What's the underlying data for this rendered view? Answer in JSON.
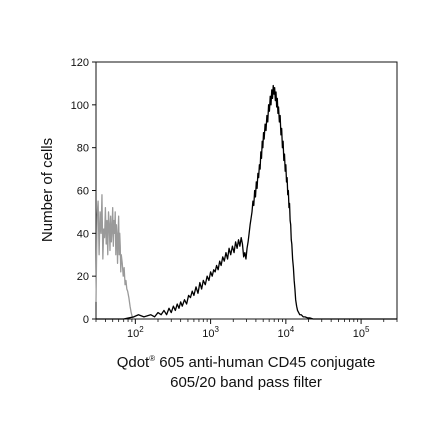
{
  "chart_data": {
    "type": "histogram",
    "title": "",
    "xlabel": {
      "line1_main": "Qdot",
      "line1_sup": "®",
      "line1_rest": " 605 anti-human CD45 conjugate",
      "line2": "605/20 band pass filter"
    },
    "ylabel": "Number of cells",
    "x_scale": "log",
    "xlim": [
      30,
      300000
    ],
    "ylim": [
      0,
      120
    ],
    "y_ticks": [
      0,
      20,
      40,
      60,
      80,
      100,
      120
    ],
    "x_ticks": [
      {
        "value": 100,
        "base": "10",
        "exp": "2"
      },
      {
        "value": 1000,
        "base": "10",
        "exp": "3"
      },
      {
        "value": 10000,
        "base": "10",
        "exp": "4"
      },
      {
        "value": 100000,
        "base": "10",
        "exp": "5"
      }
    ],
    "grid": false,
    "legend": "none",
    "series": [
      {
        "color": "#9a9a9a",
        "points": [
          [
            30,
            8
          ],
          [
            31,
            48
          ],
          [
            32,
            55
          ],
          [
            33,
            30
          ],
          [
            34,
            50
          ],
          [
            35,
            40
          ],
          [
            36,
            58
          ],
          [
            37,
            28
          ],
          [
            38,
            42
          ],
          [
            39,
            38
          ],
          [
            40,
            52
          ],
          [
            41,
            35
          ],
          [
            42,
            46
          ],
          [
            43,
            30
          ],
          [
            44,
            50
          ],
          [
            45,
            44
          ],
          [
            46,
            32
          ],
          [
            47,
            48
          ],
          [
            48,
            36
          ],
          [
            49,
            42
          ],
          [
            50,
            52
          ],
          [
            51,
            34
          ],
          [
            52,
            46
          ],
          [
            53,
            40
          ],
          [
            54,
            50
          ],
          [
            55,
            30
          ],
          [
            56,
            44
          ],
          [
            57,
            38
          ],
          [
            58,
            26
          ],
          [
            59,
            40
          ],
          [
            60,
            48
          ],
          [
            61,
            30
          ],
          [
            62,
            40
          ],
          [
            63,
            34
          ],
          [
            64,
            22
          ],
          [
            65,
            30
          ],
          [
            67,
            26
          ],
          [
            69,
            20
          ],
          [
            71,
            24
          ],
          [
            73,
            16
          ],
          [
            75,
            18
          ],
          [
            77,
            14
          ],
          [
            79,
            13
          ],
          [
            82,
            10
          ],
          [
            85,
            6
          ],
          [
            88,
            3
          ],
          [
            91,
            1
          ],
          [
            95,
            0
          ]
        ]
      },
      {
        "color": "#000000",
        "points": [
          [
            30,
            0
          ],
          [
            70,
            0
          ],
          [
            95,
            1
          ],
          [
            110,
            2
          ],
          [
            130,
            1
          ],
          [
            160,
            2
          ],
          [
            180,
            1
          ],
          [
            200,
            3
          ],
          [
            220,
            2
          ],
          [
            240,
            4
          ],
          [
            260,
            2
          ],
          [
            280,
            5
          ],
          [
            300,
            3
          ],
          [
            320,
            6
          ],
          [
            340,
            4
          ],
          [
            360,
            7
          ],
          [
            380,
            5
          ],
          [
            400,
            8
          ],
          [
            420,
            6
          ],
          [
            450,
            9
          ],
          [
            480,
            7
          ],
          [
            510,
            11
          ],
          [
            540,
            10
          ],
          [
            570,
            13
          ],
          [
            600,
            11
          ],
          [
            640,
            15
          ],
          [
            680,
            12
          ],
          [
            720,
            17
          ],
          [
            760,
            14
          ],
          [
            800,
            18
          ],
          [
            850,
            16
          ],
          [
            900,
            20
          ],
          [
            950,
            18
          ],
          [
            1000,
            22
          ],
          [
            1050,
            20
          ],
          [
            1100,
            23
          ],
          [
            1150,
            22
          ],
          [
            1200,
            25
          ],
          [
            1260,
            23
          ],
          [
            1320,
            27
          ],
          [
            1380,
            25
          ],
          [
            1450,
            29
          ],
          [
            1520,
            27
          ],
          [
            1600,
            31
          ],
          [
            1680,
            28
          ],
          [
            1760,
            33
          ],
          [
            1850,
            30
          ],
          [
            1950,
            34
          ],
          [
            2050,
            31
          ],
          [
            2150,
            36
          ],
          [
            2250,
            33
          ],
          [
            2350,
            37
          ],
          [
            2450,
            34
          ],
          [
            2550,
            38
          ],
          [
            2650,
            35
          ],
          [
            2750,
            29
          ],
          [
            2850,
            31
          ],
          [
            2950,
            28
          ],
          [
            3050,
            33
          ],
          [
            3150,
            36
          ],
          [
            3250,
            40
          ],
          [
            3350,
            44
          ],
          [
            3450,
            47
          ],
          [
            3550,
            50
          ],
          [
            3650,
            55
          ],
          [
            3750,
            53
          ],
          [
            3850,
            60
          ],
          [
            3950,
            57
          ],
          [
            4050,
            64
          ],
          [
            4150,
            61
          ],
          [
            4250,
            68
          ],
          [
            4350,
            66
          ],
          [
            4450,
            72
          ],
          [
            4550,
            70
          ],
          [
            4650,
            78
          ],
          [
            4750,
            75
          ],
          [
            4850,
            83
          ],
          [
            4950,
            80
          ],
          [
            5050,
            87
          ],
          [
            5150,
            84
          ],
          [
            5300,
            91
          ],
          [
            5450,
            88
          ],
          [
            5600,
            95
          ],
          [
            5750,
            92
          ],
          [
            5900,
            100
          ],
          [
            6050,
            97
          ],
          [
            6200,
            104
          ],
          [
            6350,
            100
          ],
          [
            6500,
            107
          ],
          [
            6650,
            103
          ],
          [
            6800,
            109
          ],
          [
            6950,
            105
          ],
          [
            7100,
            108
          ],
          [
            7250,
            102
          ],
          [
            7400,
            106
          ],
          [
            7550,
            99
          ],
          [
            7700,
            103
          ],
          [
            7850,
            96
          ],
          [
            8000,
            99
          ],
          [
            8200,
            92
          ],
          [
            8400,
            95
          ],
          [
            8600,
            86
          ],
          [
            8800,
            89
          ],
          [
            9000,
            80
          ],
          [
            9200,
            83
          ],
          [
            9400,
            74
          ],
          [
            9600,
            77
          ],
          [
            9800,
            69
          ],
          [
            10000,
            72
          ],
          [
            10200,
            64
          ],
          [
            10400,
            66
          ],
          [
            10600,
            58
          ],
          [
            10800,
            60
          ],
          [
            11000,
            52
          ],
          [
            11200,
            54
          ],
          [
            11400,
            46
          ],
          [
            11600,
            44
          ],
          [
            11800,
            37
          ],
          [
            12000,
            35
          ],
          [
            12300,
            28
          ],
          [
            12600,
            24
          ],
          [
            12900,
            18
          ],
          [
            13200,
            14
          ],
          [
            13500,
            9
          ],
          [
            13900,
            6
          ],
          [
            14300,
            4
          ],
          [
            14800,
            3
          ],
          [
            15300,
            2
          ],
          [
            16000,
            2
          ],
          [
            17000,
            1
          ],
          [
            18000,
            1
          ],
          [
            19500,
            0.5
          ],
          [
            21000,
            0.5
          ],
          [
            23000,
            0
          ],
          [
            300000,
            0
          ]
        ]
      }
    ]
  }
}
